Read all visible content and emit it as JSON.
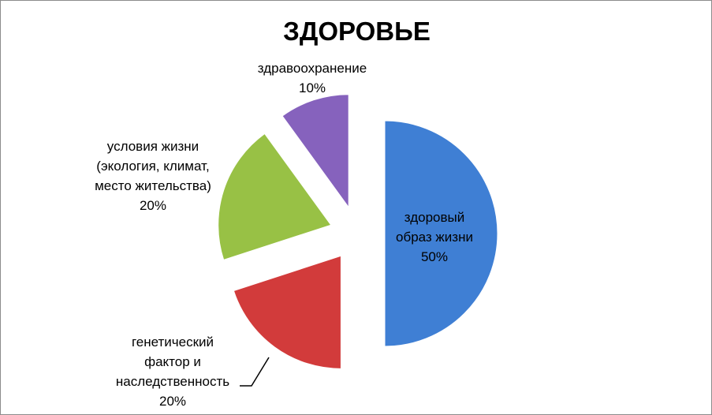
{
  "chart_data": {
    "type": "pie",
    "title": "ЗДОРОВЬЕ",
    "categories": [
      "здоровый\nобраз жизни",
      "генетический\nфактор и\nнаследственность",
      "условия жизни\n(экология, климат,\nместо жительства)",
      "здравоохранение"
    ],
    "values": [
      50,
      20,
      20,
      10
    ],
    "value_labels": [
      "50%",
      "20%",
      "20%",
      "10%"
    ],
    "colors": [
      "#3f7fd4",
      "#d23b3b",
      "#98c145",
      "#8662bd"
    ]
  }
}
